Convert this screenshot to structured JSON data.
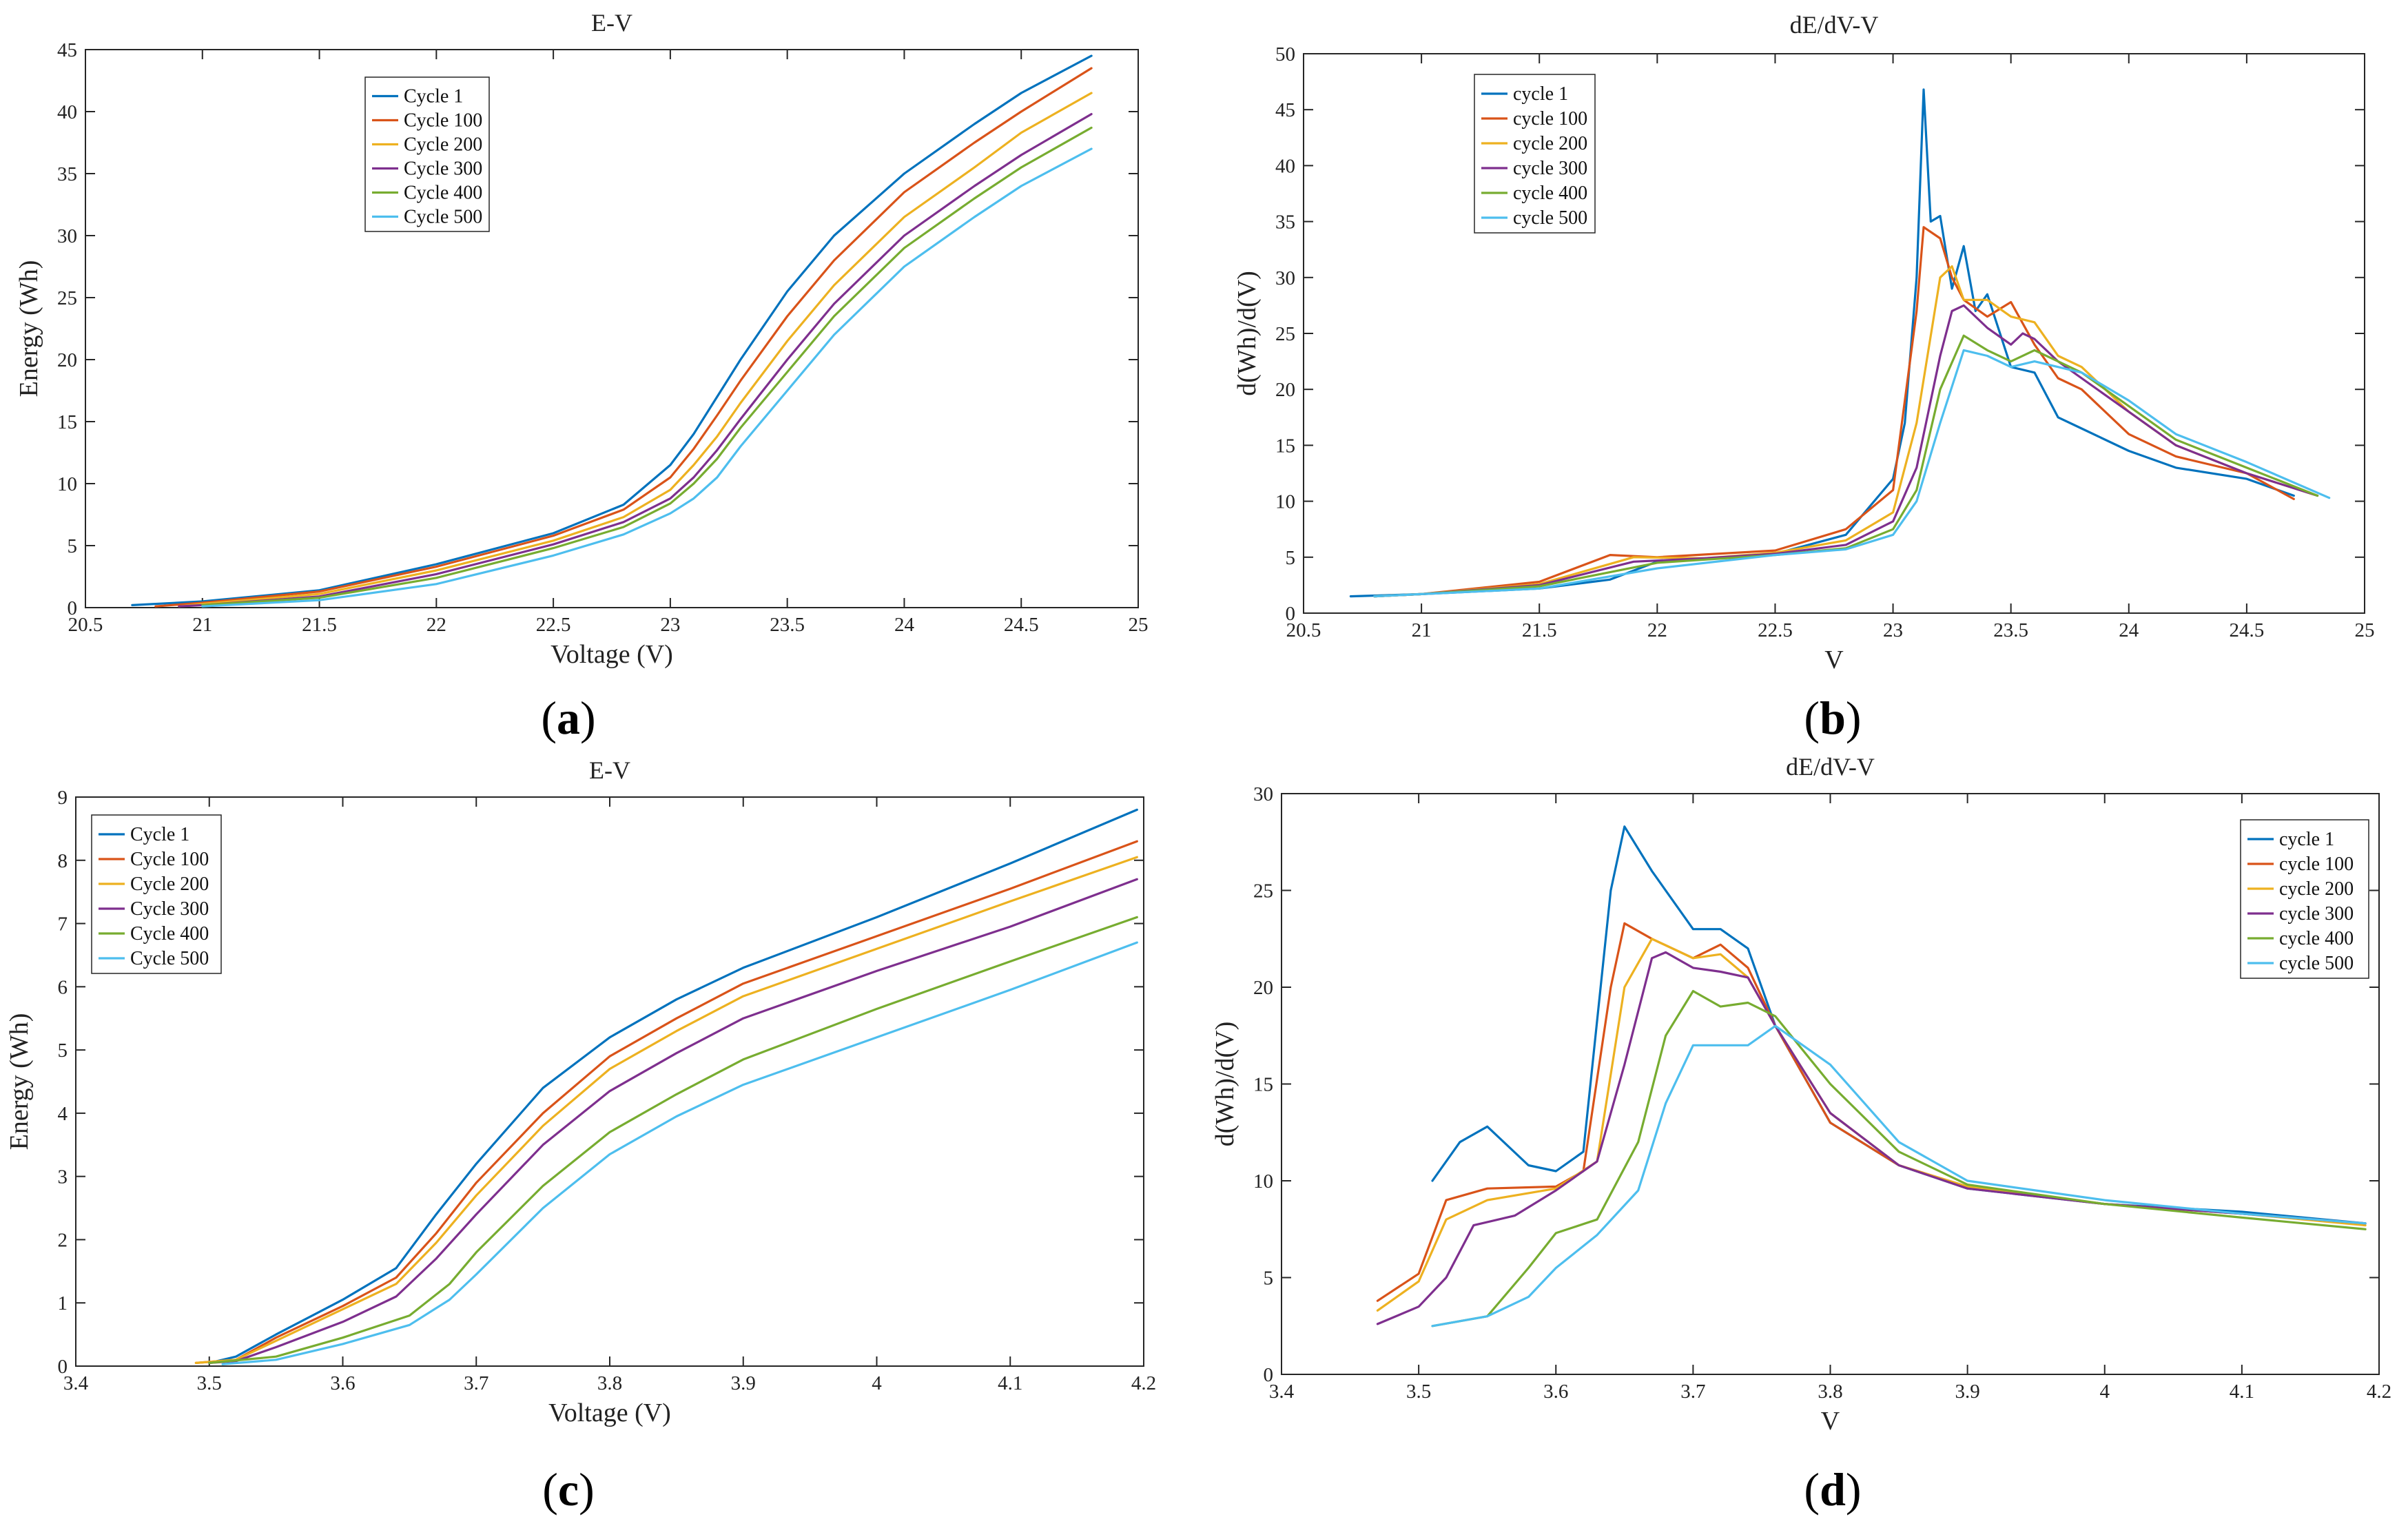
{
  "colors": [
    "#0072BD",
    "#D95319",
    "#EDB120",
    "#7E2F8E",
    "#77AC30",
    "#4DBEEE"
  ],
  "chart_data": [
    {
      "panel": "a",
      "panel_label": "(a)",
      "type": "line",
      "title": "E-V",
      "xlabel": "Voltage (V)",
      "ylabel": "Energy (Wh)",
      "xlim": [
        20.5,
        25
      ],
      "ylim": [
        0,
        45
      ],
      "xticks": [
        20.5,
        21,
        21.5,
        22,
        22.5,
        23,
        23.5,
        24,
        24.5,
        25
      ],
      "yticks": [
        0,
        5,
        10,
        15,
        20,
        25,
        30,
        35,
        40,
        45
      ],
      "grid": false,
      "legend_position": "top-center",
      "series": [
        {
          "name": "Cycle 1",
          "x": [
            20.7,
            21,
            21.5,
            22,
            22.5,
            22.8,
            23,
            23.1,
            23.2,
            23.3,
            23.5,
            23.7,
            24,
            24.3,
            24.5,
            24.8
          ],
          "y": [
            0.2,
            0.5,
            1.4,
            3.5,
            6,
            8.3,
            11.5,
            14,
            17,
            20,
            25.5,
            30,
            35,
            39,
            41.5,
            44.5
          ]
        },
        {
          "name": "Cycle 100",
          "x": [
            20.8,
            21,
            21.5,
            22,
            22.5,
            22.8,
            23,
            23.1,
            23.2,
            23.3,
            23.5,
            23.7,
            24,
            24.3,
            24.5,
            24.8
          ],
          "y": [
            0.1,
            0.4,
            1.3,
            3.3,
            5.8,
            7.9,
            10.5,
            12.8,
            15.5,
            18.3,
            23.5,
            28,
            33.5,
            37.5,
            40,
            43.5
          ]
        },
        {
          "name": "Cycle 200",
          "x": [
            20.9,
            21,
            21.5,
            22,
            22.5,
            22.8,
            23,
            23.1,
            23.2,
            23.3,
            23.5,
            23.7,
            24,
            24.3,
            24.5,
            24.8
          ],
          "y": [
            0.1,
            0.3,
            1.1,
            3,
            5.4,
            7.3,
            9.5,
            11.5,
            13.8,
            16.5,
            21.5,
            26,
            31.5,
            35.5,
            38.3,
            41.5
          ]
        },
        {
          "name": "Cycle 300",
          "x": [
            20.9,
            21,
            21.5,
            22,
            22.5,
            22.8,
            23,
            23.1,
            23.2,
            23.3,
            23.5,
            23.7,
            24,
            24.3,
            24.5,
            24.8
          ],
          "y": [
            0.1,
            0.2,
            0.9,
            2.7,
            5.1,
            6.9,
            8.8,
            10.5,
            12.7,
            15.2,
            20,
            24.5,
            30,
            34,
            36.5,
            39.8
          ]
        },
        {
          "name": "Cycle 400",
          "x": [
            21,
            21.5,
            22,
            22.5,
            22.8,
            23,
            23.1,
            23.2,
            23.3,
            23.5,
            23.7,
            24,
            24.3,
            24.5,
            24.8
          ],
          "y": [
            0.2,
            0.8,
            2.4,
            4.8,
            6.5,
            8.4,
            10,
            12,
            14.5,
            19,
            23.5,
            29,
            33,
            35.5,
            38.7
          ]
        },
        {
          "name": "Cycle 500",
          "x": [
            21,
            21.5,
            22,
            22.5,
            22.8,
            23,
            23.1,
            23.2,
            23.3,
            23.5,
            23.7,
            24,
            24.3,
            24.5,
            24.8
          ],
          "y": [
            0.1,
            0.6,
            1.9,
            4.2,
            5.9,
            7.6,
            8.8,
            10.5,
            13,
            17.5,
            22,
            27.5,
            31.5,
            34,
            37
          ]
        }
      ]
    },
    {
      "panel": "b",
      "panel_label": "(b)",
      "type": "line",
      "title": "dE/dV-V",
      "xlabel": "V",
      "ylabel": "d(Wh)/d(V)",
      "xlim": [
        20.5,
        25
      ],
      "ylim": [
        0,
        50
      ],
      "xticks": [
        20.5,
        21,
        21.5,
        22,
        22.5,
        23,
        23.5,
        24,
        24.5,
        25
      ],
      "yticks": [
        0,
        5,
        10,
        15,
        20,
        25,
        30,
        35,
        40,
        45,
        50
      ],
      "grid": false,
      "legend_position": "top-left",
      "series": [
        {
          "name": "cycle 1",
          "x": [
            20.7,
            21,
            21.5,
            21.8,
            22,
            22.5,
            22.8,
            23,
            23.05,
            23.1,
            23.13,
            23.16,
            23.2,
            23.25,
            23.3,
            23.35,
            23.4,
            23.5,
            23.6,
            23.7,
            23.8,
            24,
            24.2,
            24.5,
            24.7
          ],
          "y": [
            1.5,
            1.7,
            2.2,
            3,
            4.6,
            5.3,
            7,
            12,
            17,
            30,
            46.8,
            35,
            35.5,
            29,
            32.8,
            27,
            28.5,
            22,
            21.5,
            17.5,
            16.5,
            14.5,
            13,
            12,
            10.5
          ]
        },
        {
          "name": "cycle 100",
          "x": [
            20.8,
            21,
            21.5,
            21.8,
            22,
            22.5,
            22.8,
            23,
            23.1,
            23.13,
            23.2,
            23.25,
            23.3,
            23.4,
            23.5,
            23.6,
            23.7,
            23.8,
            24,
            24.2,
            24.5,
            24.7
          ],
          "y": [
            1.5,
            1.7,
            2.8,
            5.2,
            5,
            5.6,
            7.5,
            11,
            27,
            34.5,
            33.5,
            30,
            28,
            26.5,
            27.8,
            24,
            21,
            20,
            16,
            14,
            12.5,
            10.2
          ]
        },
        {
          "name": "cycle 200",
          "x": [
            20.8,
            21,
            21.5,
            21.9,
            22.2,
            22.5,
            22.8,
            23,
            23.1,
            23.2,
            23.25,
            23.3,
            23.4,
            23.5,
            23.6,
            23.7,
            23.8,
            24,
            24.2,
            24.5,
            24.8
          ],
          "y": [
            1.5,
            1.7,
            2.6,
            5,
            4.9,
            5.4,
            6.5,
            9,
            17,
            30,
            31,
            28,
            28,
            26.5,
            26,
            23,
            22,
            18,
            15,
            12.5,
            10.5
          ]
        },
        {
          "name": "cycle 300",
          "x": [
            20.8,
            21,
            21.5,
            21.9,
            22.2,
            22.5,
            22.8,
            23,
            23.1,
            23.2,
            23.25,
            23.3,
            23.4,
            23.5,
            23.55,
            23.6,
            23.7,
            23.8,
            24,
            24.2,
            24.5,
            24.8
          ],
          "y": [
            1.5,
            1.7,
            2.5,
            4.6,
            4.9,
            5.3,
            6.1,
            8.2,
            13,
            23,
            27,
            27.5,
            25.5,
            24,
            25,
            24.5,
            22.5,
            21,
            18,
            15,
            12.5,
            10.5
          ]
        },
        {
          "name": "cycle 400",
          "x": [
            20.8,
            21,
            21.5,
            22,
            22.5,
            22.8,
            23,
            23.1,
            23.2,
            23.3,
            23.4,
            23.5,
            23.6,
            23.7,
            23.8,
            24,
            24.2,
            24.5,
            24.8
          ],
          "y": [
            1.5,
            1.7,
            2.4,
            4.5,
            5.2,
            5.8,
            7.5,
            11,
            20,
            24.8,
            23.5,
            22.5,
            23.5,
            22.5,
            21.5,
            18.5,
            15.5,
            13,
            10.5
          ]
        },
        {
          "name": "cycle 500",
          "x": [
            20.8,
            21,
            21.5,
            22,
            22.5,
            22.8,
            23,
            23.1,
            23.2,
            23.3,
            23.4,
            23.5,
            23.6,
            23.7,
            23.8,
            24,
            24.2,
            24.5,
            24.85
          ],
          "y": [
            1.5,
            1.7,
            2.2,
            4,
            5.2,
            5.7,
            7,
            10,
            17,
            23.5,
            23,
            22,
            22.5,
            22,
            21.5,
            19,
            16,
            13.5,
            10.3
          ]
        }
      ]
    },
    {
      "panel": "c",
      "panel_label": "(c)",
      "type": "line",
      "title": "E-V",
      "xlabel": "Voltage (V)",
      "ylabel": "Energy (Wh)",
      "xlim": [
        3.4,
        4.2
      ],
      "ylim": [
        0,
        9
      ],
      "xticks": [
        3.4,
        3.5,
        3.6,
        3.7,
        3.8,
        3.9,
        4,
        4.1,
        4.2
      ],
      "yticks": [
        0,
        1,
        2,
        3,
        4,
        5,
        6,
        7,
        8,
        9
      ],
      "grid": false,
      "legend_position": "top-left",
      "series": [
        {
          "name": "Cycle 1",
          "x": [
            3.5,
            3.52,
            3.55,
            3.6,
            3.64,
            3.67,
            3.7,
            3.75,
            3.8,
            3.85,
            3.9,
            4,
            4.1,
            4.195
          ],
          "y": [
            0.05,
            0.15,
            0.5,
            1.05,
            1.55,
            2.4,
            3.2,
            4.4,
            5.2,
            5.8,
            6.3,
            7.1,
            7.95,
            8.8
          ]
        },
        {
          "name": "Cycle 100",
          "x": [
            3.49,
            3.52,
            3.55,
            3.6,
            3.64,
            3.67,
            3.7,
            3.75,
            3.8,
            3.85,
            3.9,
            4,
            4.1,
            4.195
          ],
          "y": [
            0.05,
            0.1,
            0.45,
            0.95,
            1.4,
            2.1,
            2.9,
            4,
            4.9,
            5.5,
            6.05,
            6.8,
            7.55,
            8.3
          ]
        },
        {
          "name": "Cycle 200",
          "x": [
            3.49,
            3.52,
            3.55,
            3.6,
            3.64,
            3.67,
            3.7,
            3.75,
            3.8,
            3.85,
            3.9,
            4,
            4.1,
            4.195
          ],
          "y": [
            0.05,
            0.1,
            0.4,
            0.9,
            1.3,
            1.95,
            2.7,
            3.8,
            4.7,
            5.3,
            5.85,
            6.6,
            7.35,
            8.05
          ]
        },
        {
          "name": "Cycle 300",
          "x": [
            3.5,
            3.52,
            3.55,
            3.6,
            3.64,
            3.67,
            3.7,
            3.75,
            3.8,
            3.85,
            3.9,
            4,
            4.1,
            4.195
          ],
          "y": [
            0.05,
            0.08,
            0.3,
            0.7,
            1.1,
            1.7,
            2.4,
            3.5,
            4.35,
            4.95,
            5.5,
            6.25,
            6.95,
            7.7
          ]
        },
        {
          "name": "Cycle 400",
          "x": [
            3.5,
            3.55,
            3.6,
            3.65,
            3.68,
            3.7,
            3.75,
            3.8,
            3.85,
            3.9,
            4,
            4.1,
            4.195
          ],
          "y": [
            0.05,
            0.15,
            0.45,
            0.8,
            1.3,
            1.8,
            2.85,
            3.7,
            4.3,
            4.85,
            5.65,
            6.4,
            7.1
          ]
        },
        {
          "name": "Cycle 500",
          "x": [
            3.51,
            3.55,
            3.6,
            3.65,
            3.68,
            3.7,
            3.75,
            3.8,
            3.85,
            3.9,
            4,
            4.1,
            4.195
          ],
          "y": [
            0.03,
            0.1,
            0.35,
            0.65,
            1.05,
            1.45,
            2.5,
            3.35,
            3.95,
            4.45,
            5.2,
            5.95,
            6.7
          ]
        }
      ]
    },
    {
      "panel": "d",
      "panel_label": "(d)",
      "type": "line",
      "title": "dE/dV-V",
      "xlabel": "V",
      "ylabel": "d(Wh)/d(V)",
      "xlim": [
        3.4,
        4.2
      ],
      "ylim": [
        0,
        30
      ],
      "xticks": [
        3.4,
        3.5,
        3.6,
        3.7,
        3.8,
        3.9,
        4,
        4.1,
        4.2
      ],
      "yticks": [
        0,
        5,
        10,
        15,
        20,
        25,
        30
      ],
      "grid": false,
      "legend_position": "top-right",
      "series": [
        {
          "name": "cycle 1",
          "x": [
            3.51,
            3.53,
            3.55,
            3.58,
            3.6,
            3.62,
            3.64,
            3.65,
            3.67,
            3.7,
            3.72,
            3.74,
            3.76,
            3.8,
            3.85,
            3.9,
            4,
            4.1,
            4.19
          ],
          "y": [
            10,
            12,
            12.8,
            10.8,
            10.5,
            11.5,
            25,
            28.3,
            26,
            23,
            23,
            22,
            18,
            13,
            10.8,
            9.6,
            8.8,
            8.4,
            7.8
          ]
        },
        {
          "name": "cycle 100",
          "x": [
            3.47,
            3.5,
            3.52,
            3.55,
            3.6,
            3.62,
            3.64,
            3.65,
            3.67,
            3.7,
            3.72,
            3.74,
            3.76,
            3.8,
            3.85,
            3.9,
            4,
            4.1,
            4.19
          ],
          "y": [
            3.8,
            5.2,
            9,
            9.6,
            9.7,
            10.5,
            20,
            23.3,
            22.5,
            21.5,
            22.2,
            21,
            18,
            13,
            10.8,
            9.7,
            8.8,
            8.3,
            7.8
          ]
        },
        {
          "name": "cycle 200",
          "x": [
            3.47,
            3.5,
            3.52,
            3.55,
            3.6,
            3.63,
            3.65,
            3.67,
            3.7,
            3.72,
            3.74,
            3.76,
            3.8,
            3.85,
            3.9,
            4,
            4.1,
            4.19
          ],
          "y": [
            3.3,
            4.8,
            8,
            9,
            9.6,
            11,
            20,
            22.5,
            21.5,
            21.7,
            20.5,
            18,
            13.5,
            10.8,
            9.7,
            8.8,
            8.3,
            7.7
          ]
        },
        {
          "name": "cycle 300",
          "x": [
            3.47,
            3.5,
            3.52,
            3.54,
            3.57,
            3.6,
            3.63,
            3.65,
            3.67,
            3.68,
            3.7,
            3.72,
            3.74,
            3.76,
            3.8,
            3.85,
            3.9,
            4,
            4.1,
            4.19
          ],
          "y": [
            2.6,
            3.5,
            5,
            7.7,
            8.2,
            9.5,
            11,
            16,
            21.5,
            21.8,
            21,
            20.8,
            20.5,
            18,
            13.5,
            10.8,
            9.6,
            8.8,
            8.3,
            7.8
          ]
        },
        {
          "name": "cycle 400",
          "x": [
            3.51,
            3.55,
            3.58,
            3.6,
            3.63,
            3.66,
            3.68,
            3.7,
            3.72,
            3.74,
            3.76,
            3.8,
            3.85,
            3.9,
            4,
            4.1,
            4.19
          ],
          "y": [
            2.5,
            3,
            5.5,
            7.3,
            8,
            12,
            17.5,
            19.8,
            19,
            19.2,
            18.5,
            15,
            11.5,
            9.8,
            8.8,
            8.1,
            7.5
          ]
        },
        {
          "name": "cycle 500",
          "x": [
            3.51,
            3.55,
            3.58,
            3.6,
            3.63,
            3.66,
            3.68,
            3.7,
            3.72,
            3.74,
            3.76,
            3.8,
            3.85,
            3.9,
            4,
            4.1,
            4.19
          ],
          "y": [
            2.5,
            3,
            4,
            5.5,
            7.2,
            9.5,
            14,
            17,
            17,
            17,
            18,
            16,
            12,
            10,
            9,
            8.3,
            7.8
          ]
        }
      ]
    }
  ]
}
